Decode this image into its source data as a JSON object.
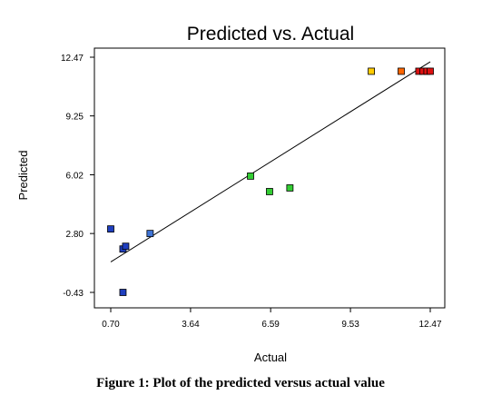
{
  "caption": "Figure 1: Plot of the predicted versus actual value",
  "chart_data": {
    "type": "scatter",
    "title": "Predicted vs. Actual",
    "xlabel": "Actual",
    "ylabel": "Predicted",
    "xlim": [
      0.7,
      12.47
    ],
    "ylim": [
      -0.43,
      12.47
    ],
    "x_ticks": [
      0.7,
      3.64,
      6.59,
      9.53,
      12.47
    ],
    "y_ticks": [
      -0.43,
      2.8,
      6.02,
      9.25,
      12.47
    ],
    "x_tick_labels": [
      "0.70",
      "3.64",
      "6.59",
      "9.53",
      "12.47"
    ],
    "y_tick_labels": [
      "-0.43",
      "2.80",
      "6.02",
      "9.25",
      "12.47"
    ],
    "grid": false,
    "reference_line": {
      "from": [
        0.7,
        1.24
      ],
      "to": [
        12.47,
        12.22
      ]
    },
    "points": [
      {
        "x": 0.7,
        "y": 3.05,
        "color": "#1f3fbf"
      },
      {
        "x": 1.15,
        "y": 1.95,
        "color": "#1f3fbf"
      },
      {
        "x": 1.25,
        "y": 2.1,
        "color": "#1f3fbf"
      },
      {
        "x": 1.15,
        "y": -0.43,
        "color": "#1f3fbf"
      },
      {
        "x": 2.15,
        "y": 2.8,
        "color": "#3f74d6"
      },
      {
        "x": 5.85,
        "y": 5.95,
        "color": "#33cc33"
      },
      {
        "x": 6.55,
        "y": 5.1,
        "color": "#33cc33"
      },
      {
        "x": 7.3,
        "y": 5.3,
        "color": "#33cc33"
      },
      {
        "x": 10.3,
        "y": 11.7,
        "color": "#ffcc00"
      },
      {
        "x": 11.4,
        "y": 11.7,
        "color": "#ff6600"
      },
      {
        "x": 12.05,
        "y": 11.7,
        "color": "#dd1111"
      },
      {
        "x": 12.2,
        "y": 11.7,
        "color": "#dd1111"
      },
      {
        "x": 12.35,
        "y": 11.7,
        "color": "#dd1111"
      },
      {
        "x": 12.47,
        "y": 11.7,
        "color": "#dd1111"
      }
    ]
  }
}
